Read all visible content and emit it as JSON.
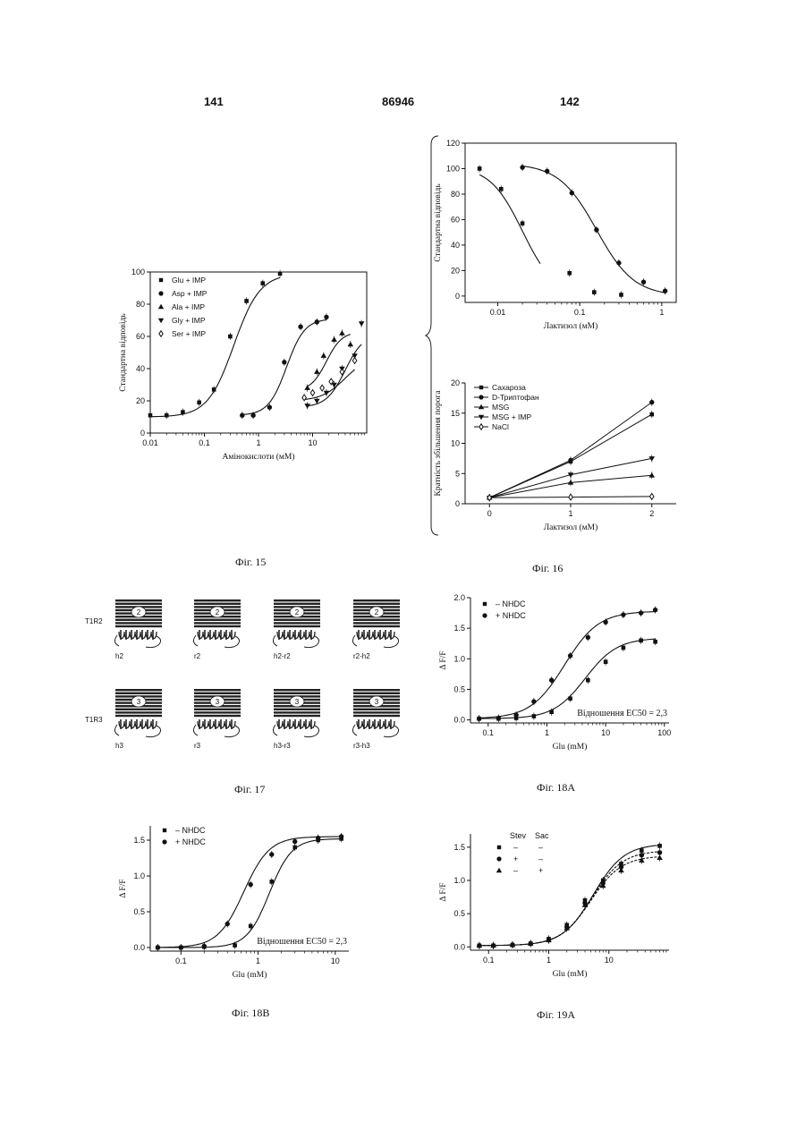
{
  "header": {
    "left_page": "141",
    "patent_number": "86946",
    "right_page": "142"
  },
  "captions": {
    "fig15": "Фіг. 15",
    "fig16": "Фіг. 16",
    "fig17": "Фіг. 17",
    "fig18a": "Фіг. 18А",
    "fig18b": "Фіг. 18B",
    "fig19a": "Фіг. 19А"
  },
  "fig17": {
    "row_labels": [
      "T1R2",
      "T1R3"
    ],
    "top_row": [
      {
        "label": "h2",
        "num": "2"
      },
      {
        "label": "r2",
        "num": "2"
      },
      {
        "label": "h2-r2",
        "num": "2"
      },
      {
        "label": "r2-h2",
        "num": "2"
      }
    ],
    "bottom_row": [
      {
        "label": "h3",
        "num": "3"
      },
      {
        "label": "r3",
        "num": "3"
      },
      {
        "label": "h3-r3",
        "num": "3"
      },
      {
        "label": "r3-h3",
        "num": "3"
      }
    ]
  },
  "chart_data": [
    {
      "id": "fig15",
      "type": "scatter",
      "xscale": "log",
      "xlabel": "Амінокислоти (мМ)",
      "ylabel": "Стандартна відповідь",
      "xlim": [
        0.01,
        100
      ],
      "ylim": [
        0,
        100
      ],
      "xticks": [
        0.01,
        0.1,
        1,
        10
      ],
      "xtick_labels": [
        "0.01",
        "0.1",
        "1",
        "10"
      ],
      "yticks": [
        0,
        20,
        40,
        60,
        80,
        100
      ],
      "legend_position": "top-left",
      "series": [
        {
          "name": "Glu + IMP",
          "marker": "square",
          "x": [
            0.01,
            0.02,
            0.04,
            0.08,
            0.15,
            0.3,
            0.6,
            1.2,
            2.5
          ],
          "y": [
            11,
            11,
            13,
            19,
            27,
            60,
            82,
            93,
            99
          ]
        },
        {
          "name": "Asp + IMP",
          "marker": "circle",
          "x": [
            0.5,
            0.8,
            1.6,
            3,
            6,
            12,
            18
          ],
          "y": [
            11,
            11,
            16,
            44,
            66,
            69,
            72
          ]
        },
        {
          "name": "Ala + IMP",
          "marker": "triangle-up",
          "x": [
            8,
            12,
            16,
            25,
            35,
            50
          ],
          "y": [
            28,
            38,
            48,
            58,
            62,
            55
          ]
        },
        {
          "name": "Gly + IMP",
          "marker": "triangle-down",
          "x": [
            8,
            12,
            18,
            25,
            35,
            60,
            80
          ],
          "y": [
            17,
            20,
            25,
            30,
            40,
            48,
            68
          ]
        },
        {
          "name": "Ser + IMP",
          "marker": "diamond",
          "x": [
            7,
            10,
            15,
            22,
            35,
            60
          ],
          "y": [
            22,
            25,
            28,
            32,
            38,
            45
          ]
        }
      ]
    },
    {
      "id": "fig16-top",
      "type": "scatter",
      "xscale": "log",
      "xlabel": "Лактизол (мМ)",
      "ylabel": "Стандартна відповідь",
      "xlim": [
        0.004,
        1.5
      ],
      "ylim": [
        -5,
        120
      ],
      "xticks": [
        0.01,
        0.1,
        1
      ],
      "xtick_labels": [
        "0.01",
        "0.1",
        "1"
      ],
      "yticks": [
        0,
        20,
        40,
        60,
        80,
        100,
        120
      ],
      "series": [
        {
          "name": "",
          "marker": "square",
          "x": [
            0.006,
            0.011,
            0.02,
            0.075,
            0.15,
            0.32
          ],
          "y": [
            100,
            84,
            57,
            18,
            3,
            1
          ]
        },
        {
          "name": "",
          "marker": "circle",
          "x": [
            0.02,
            0.04,
            0.08,
            0.16,
            0.3,
            0.6,
            1.1
          ],
          "y": [
            101,
            98,
            81,
            52,
            26,
            11,
            4
          ]
        }
      ]
    },
    {
      "id": "fig16-bottom",
      "type": "line",
      "xlabel": "Лактизол (мМ)",
      "ylabel": "Кратність збільшення порога",
      "xlim": [
        -0.3,
        2.3
      ],
      "ylim": [
        0,
        20
      ],
      "xticks": [
        0,
        1,
        2
      ],
      "xtick_labels": [
        "0",
        "1",
        "2"
      ],
      "yticks": [
        0,
        5,
        10,
        15,
        20
      ],
      "legend_position": "top-left",
      "x": [
        0,
        1,
        2
      ],
      "series": [
        {
          "name": "Сахароза",
          "marker": "square",
          "values": [
            1,
            7,
            14.8
          ]
        },
        {
          "name": "D-Триптофан",
          "marker": "circle",
          "values": [
            1,
            7.2,
            16.8
          ]
        },
        {
          "name": "MSG",
          "marker": "triangle-up",
          "values": [
            1,
            3.5,
            4.7
          ]
        },
        {
          "name": "MSG + IMP",
          "marker": "triangle-down",
          "values": [
            1,
            4.8,
            7.5
          ]
        },
        {
          "name": "NaCl",
          "marker": "diamond",
          "values": [
            1,
            1.1,
            1.2
          ]
        }
      ]
    },
    {
      "id": "fig18a",
      "type": "scatter",
      "xscale": "log",
      "xlabel": "Glu (mM)",
      "ylabel": "Δ F/F",
      "xlim": [
        0.05,
        120
      ],
      "ylim": [
        -0.05,
        2.0
      ],
      "xticks": [
        0.1,
        1,
        10,
        100
      ],
      "xtick_labels": [
        "0.1",
        "1",
        "10",
        "100"
      ],
      "yticks": [
        0,
        0.5,
        1.0,
        1.5,
        2.0
      ],
      "ytick_labels": [
        "0.0",
        "0.5",
        "1.0",
        "1.5",
        "2.0"
      ],
      "annotation": "Відношення EC50 = 2,3",
      "legend_position": "top-left",
      "series": [
        {
          "name": "– NHDC",
          "marker": "square",
          "x": [
            0.07,
            0.15,
            0.3,
            0.6,
            1.2,
            2.5,
            5,
            10,
            20,
            40,
            70
          ],
          "y": [
            0.02,
            0.02,
            0.03,
            0.06,
            0.13,
            0.35,
            0.65,
            0.95,
            1.18,
            1.3,
            1.28
          ]
        },
        {
          "name": "+ NHDC",
          "marker": "circle",
          "x": [
            0.07,
            0.15,
            0.3,
            0.6,
            1.2,
            2.5,
            5,
            10,
            20,
            40,
            70
          ],
          "y": [
            0.02,
            0.03,
            0.08,
            0.3,
            0.65,
            1.05,
            1.35,
            1.6,
            1.72,
            1.75,
            1.8
          ]
        }
      ]
    },
    {
      "id": "fig18b",
      "type": "scatter",
      "xscale": "log",
      "xlabel": "Glu (mM)",
      "ylabel": "Δ F/F",
      "xlim": [
        0.04,
        15
      ],
      "ylim": [
        -0.05,
        1.7
      ],
      "xticks": [
        0.1,
        1,
        10
      ],
      "xtick_labels": [
        "0.1",
        "1",
        "10"
      ],
      "yticks": [
        0,
        0.5,
        1.0,
        1.5
      ],
      "ytick_labels": [
        "0.0",
        "0.5",
        "1.0",
        "1.5"
      ],
      "annotation": "Відношення EC50 = 2,3",
      "legend_position": "top-left",
      "series": [
        {
          "name": "– NHDC",
          "marker": "square",
          "x": [
            0.05,
            0.1,
            0.2,
            0.5,
            0.8,
            1.5,
            3,
            6,
            12
          ],
          "y": [
            0.0,
            0.0,
            0.01,
            0.03,
            0.3,
            0.92,
            1.4,
            1.5,
            1.52
          ]
        },
        {
          "name": "+ NHDC",
          "marker": "circle",
          "x": [
            0.05,
            0.1,
            0.2,
            0.4,
            0.8,
            1.5,
            3,
            6,
            12
          ],
          "y": [
            0.0,
            0.0,
            0.02,
            0.33,
            0.88,
            1.3,
            1.48,
            1.53,
            1.55
          ]
        }
      ]
    },
    {
      "id": "fig19a",
      "type": "scatter",
      "xscale": "log",
      "xlabel": "Glu (mM)",
      "ylabel": "Δ F/F",
      "xlim": [
        0.05,
        100
      ],
      "ylim": [
        -0.05,
        1.7
      ],
      "xticks": [
        0.1,
        1,
        10
      ],
      "xtick_labels": [
        "0.1",
        "1",
        "10"
      ],
      "yticks": [
        0,
        0.5,
        1.0,
        1.5
      ],
      "ytick_labels": [
        "0.0",
        "0.5",
        "1.0",
        "1.5"
      ],
      "legend_position": "top-left",
      "legend_headers": [
        "Stev",
        "Sac"
      ],
      "series": [
        {
          "name": "",
          "stev": "–",
          "sac": "–",
          "marker": "square",
          "x": [
            0.07,
            0.12,
            0.25,
            0.5,
            1,
            2,
            4,
            8,
            16,
            35,
            70
          ],
          "y": [
            0.02,
            0.02,
            0.03,
            0.05,
            0.12,
            0.33,
            0.7,
            1.0,
            1.25,
            1.45,
            1.52
          ]
        },
        {
          "name": "",
          "stev": "+",
          "sac": "–",
          "marker": "circle",
          "x": [
            0.07,
            0.12,
            0.25,
            0.5,
            1,
            2,
            4,
            8,
            16,
            35,
            70
          ],
          "y": [
            0.02,
            0.02,
            0.03,
            0.05,
            0.11,
            0.3,
            0.66,
            0.96,
            1.2,
            1.38,
            1.42
          ]
        },
        {
          "name": "",
          "stev": "–",
          "sac": "+",
          "marker": "triangle-up",
          "x": [
            0.07,
            0.12,
            0.25,
            0.5,
            1,
            2,
            4,
            8,
            16,
            35,
            70
          ],
          "y": [
            0.02,
            0.02,
            0.03,
            0.05,
            0.1,
            0.28,
            0.63,
            0.92,
            1.15,
            1.3,
            1.34
          ]
        }
      ]
    }
  ]
}
